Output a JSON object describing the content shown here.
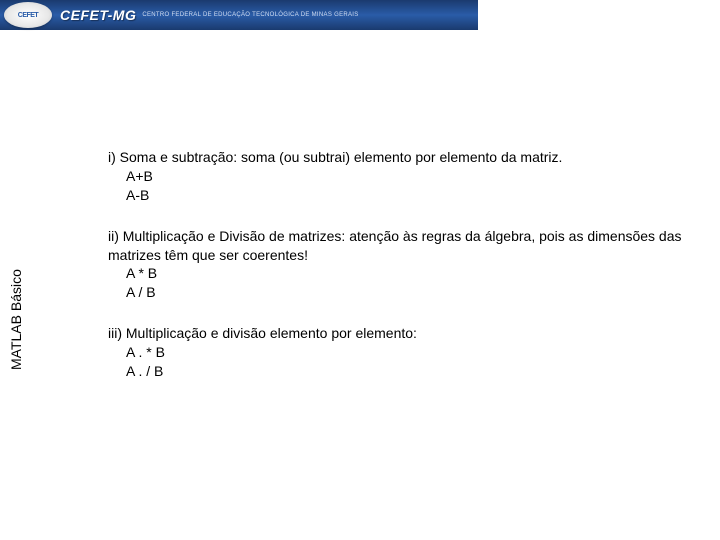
{
  "header": {
    "logo_text": "CEFET",
    "title": "CEFET-MG",
    "subtitle": "CENTRO FEDERAL DE EDUCAÇÃO TECNOLÓGICA DE MINAS GERAIS"
  },
  "sidebar": {
    "label": "MATLAB Básico"
  },
  "sections": [
    {
      "title": "i) Soma e subtração:  soma (ou subtrai) elemento por elemento da matriz.",
      "code": [
        "A+B",
        "A-B"
      ]
    },
    {
      "title": "ii) Multiplicação e Divisão de matrizes:  atenção às regras da álgebra, pois as dimensões das matrizes têm que ser coerentes!",
      "code": [
        "A * B",
        "A / B"
      ]
    },
    {
      "title": "iii) Multiplicação e divisão elemento por elemento:",
      "code": [
        "A . * B",
        "A . / B"
      ]
    }
  ],
  "colors": {
    "header_bg_dark": "#1a3a6e",
    "header_bg_light": "#2a5ca8",
    "text": "#000000",
    "header_text": "#ffffff",
    "background": "#ffffff"
  }
}
